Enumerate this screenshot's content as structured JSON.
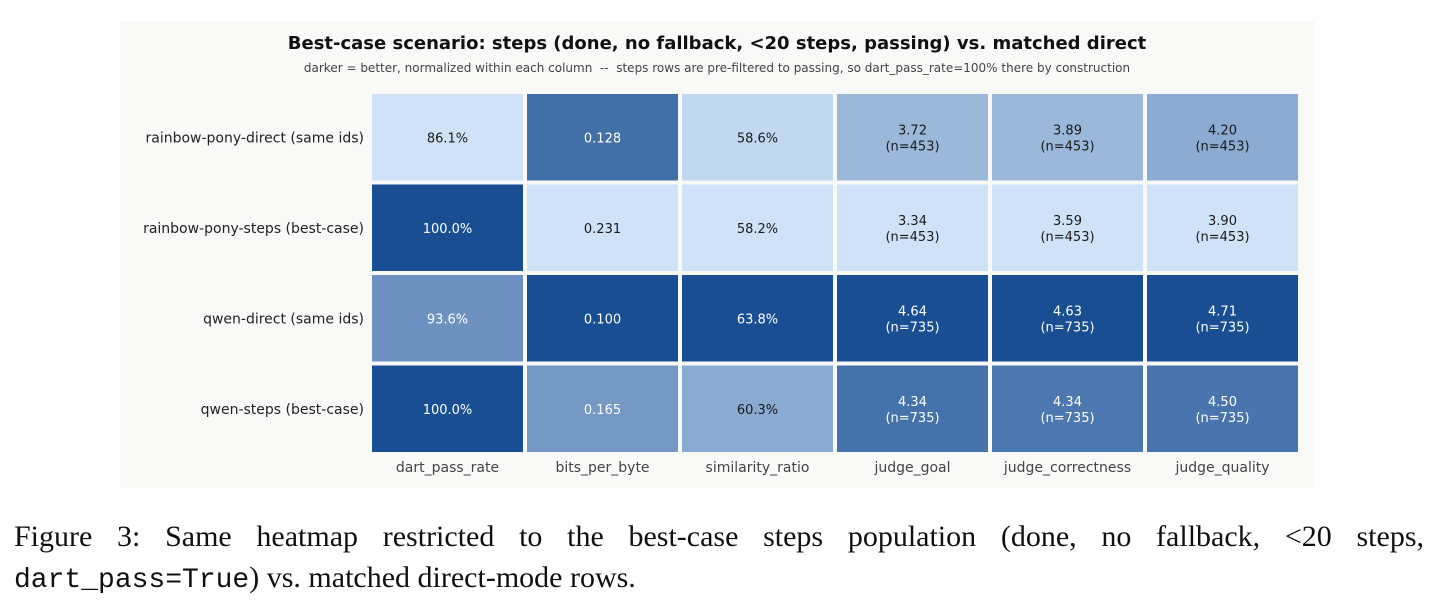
{
  "chart_data": {
    "type": "heatmap",
    "title": "Best-case scenario: steps (done, no fallback, <20 steps, passing) vs. matched direct",
    "subtitle": "darker = better, normalized within each column  --  steps rows are pre-filtered to passing, so dart_pass_rate=100% there by construction",
    "rows": [
      "rainbow-pony-direct (same ids)",
      "rainbow-pony-steps (best-case)",
      "qwen-direct (same ids)",
      "qwen-steps (best-case)"
    ],
    "columns": [
      "dart_pass_rate",
      "bits_per_byte",
      "similarity_ratio",
      "judge_goal",
      "judge_correctness",
      "judge_quality"
    ],
    "values": [
      [
        86.1,
        0.128,
        58.6,
        3.72,
        3.89,
        4.2
      ],
      [
        100.0,
        0.231,
        58.2,
        3.34,
        3.59,
        3.9
      ],
      [
        93.6,
        0.1,
        63.8,
        4.64,
        4.63,
        4.71
      ],
      [
        100.0,
        0.165,
        60.3,
        4.34,
        4.34,
        4.5
      ]
    ],
    "cell_labels": [
      [
        [
          "86.1%"
        ],
        [
          "0.128"
        ],
        [
          "58.6%"
        ],
        [
          "3.72",
          "(n=453)"
        ],
        [
          "3.89",
          "(n=453)"
        ],
        [
          "4.20",
          "(n=453)"
        ]
      ],
      [
        [
          "100.0%"
        ],
        [
          "0.231"
        ],
        [
          "58.2%"
        ],
        [
          "3.34",
          "(n=453)"
        ],
        [
          "3.59",
          "(n=453)"
        ],
        [
          "3.90",
          "(n=453)"
        ]
      ],
      [
        [
          "93.6%"
        ],
        [
          "0.100"
        ],
        [
          "63.8%"
        ],
        [
          "4.64",
          "(n=735)"
        ],
        [
          "4.63",
          "(n=735)"
        ],
        [
          "4.71",
          "(n=735)"
        ]
      ],
      [
        [
          "100.0%"
        ],
        [
          "0.165"
        ],
        [
          "60.3%"
        ],
        [
          "4.34",
          "(n=735)"
        ],
        [
          "4.34",
          "(n=735)"
        ],
        [
          "4.50",
          "(n=735)"
        ]
      ]
    ],
    "normalized_score": [
      [
        0.0,
        0.78,
        0.07,
        0.29,
        0.29,
        0.37
      ],
      [
        1.0,
        0.0,
        0.0,
        0.0,
        0.0,
        0.0
      ],
      [
        0.54,
        1.0,
        1.0,
        1.0,
        1.0,
        1.0
      ],
      [
        1.0,
        0.5,
        0.38,
        0.76,
        0.72,
        0.74
      ]
    ],
    "colormap": [
      "#cfe2f8",
      "#1a4e92"
    ],
    "text_colors": {
      "light_cell": "#1a1a1a",
      "dark_cell": "#ffffff"
    }
  },
  "caption": {
    "prefix": "Figure 3:  Same heatmap restricted to the best-case steps population (done, no fallback, <20 steps,",
    "code": "dart_pass=True",
    "suffix": ") vs. matched direct-mode rows."
  }
}
